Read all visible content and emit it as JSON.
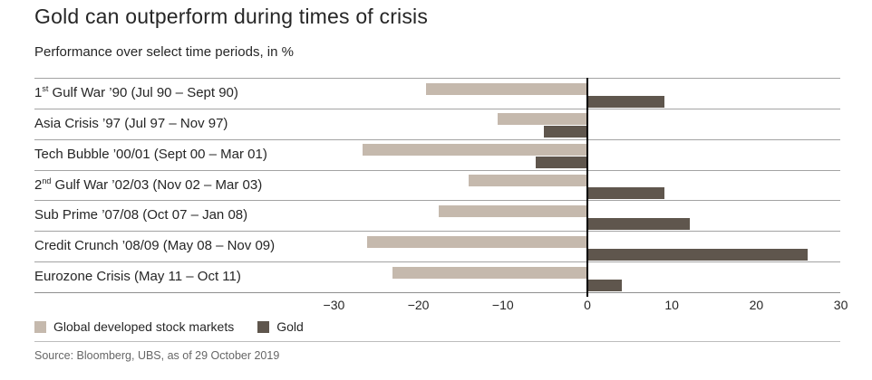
{
  "header": {
    "title": "Gold can outperform during times of crisis",
    "subtitle": "Performance over select time periods, in %"
  },
  "footer": {
    "source": "Source: Bloomberg, UBS, as of 29 October 2019"
  },
  "chart_data": {
    "type": "bar",
    "orientation": "horizontal",
    "title": "Gold can outperform during times of crisis",
    "subtitle": "Performance over select time periods, in %",
    "categories": [
      "1st Gulf War ’90 (Jul 90 – Sept 90)",
      "Asia Crisis ’97 (Jul 97 – Nov 97)",
      "Tech Bubble ’00/01 (Sept 00 – Mar 01)",
      "2nd Gulf War ’02/03 (Nov 02 – Mar 03)",
      "Sub Prime ’07/08 (Oct 07 – Jan 08)",
      "Credit Crunch ’08/09 (May 08 – Nov 09)",
      "Eurozone Crisis (May 11 – Oct 11)"
    ],
    "category_parts": [
      {
        "pre": "1",
        "sup": "st",
        "rest": " Gulf War ’90 (Jul 90 – Sept 90)"
      },
      {
        "pre": "",
        "sup": "",
        "rest": "Asia Crisis ’97 (Jul 97 – Nov 97)"
      },
      {
        "pre": "",
        "sup": "",
        "rest": "Tech Bubble ’00/01 (Sept 00 – Mar 01)"
      },
      {
        "pre": "2",
        "sup": "nd",
        "rest": " Gulf War ’02/03 (Nov 02 – Mar 03)"
      },
      {
        "pre": "",
        "sup": "",
        "rest": "Sub Prime ’07/08 (Oct 07 – Jan 08)"
      },
      {
        "pre": "",
        "sup": "",
        "rest": "Credit Crunch ’08/09 (May 08 – Nov 09)"
      },
      {
        "pre": "",
        "sup": "",
        "rest": "Eurozone Crisis (May 11 – Oct 11)"
      }
    ],
    "series": [
      {
        "name": "Global developed stock markets",
        "color": "#c5b9ad",
        "values": [
          -19,
          -10.5,
          -26.5,
          -14,
          -17.5,
          -26,
          -23
        ]
      },
      {
        "name": "Gold",
        "color": "#5f564d",
        "values": [
          9,
          -5,
          -6,
          9,
          12,
          26,
          4
        ]
      }
    ],
    "xlim": [
      -30,
      30
    ],
    "xticks": [
      -30,
      -20,
      -10,
      0,
      10,
      20,
      30
    ],
    "xtick_labels": [
      "−30",
      "−20",
      "−10",
      "0",
      "10",
      "20",
      "30"
    ],
    "grid": false,
    "legend_position": "bottom-left",
    "separator_color": "#a3a3a3",
    "axis_color": "#8f8f8f",
    "zero_line_color": "#000000",
    "text_color": "#262626",
    "source_color": "#666666"
  }
}
